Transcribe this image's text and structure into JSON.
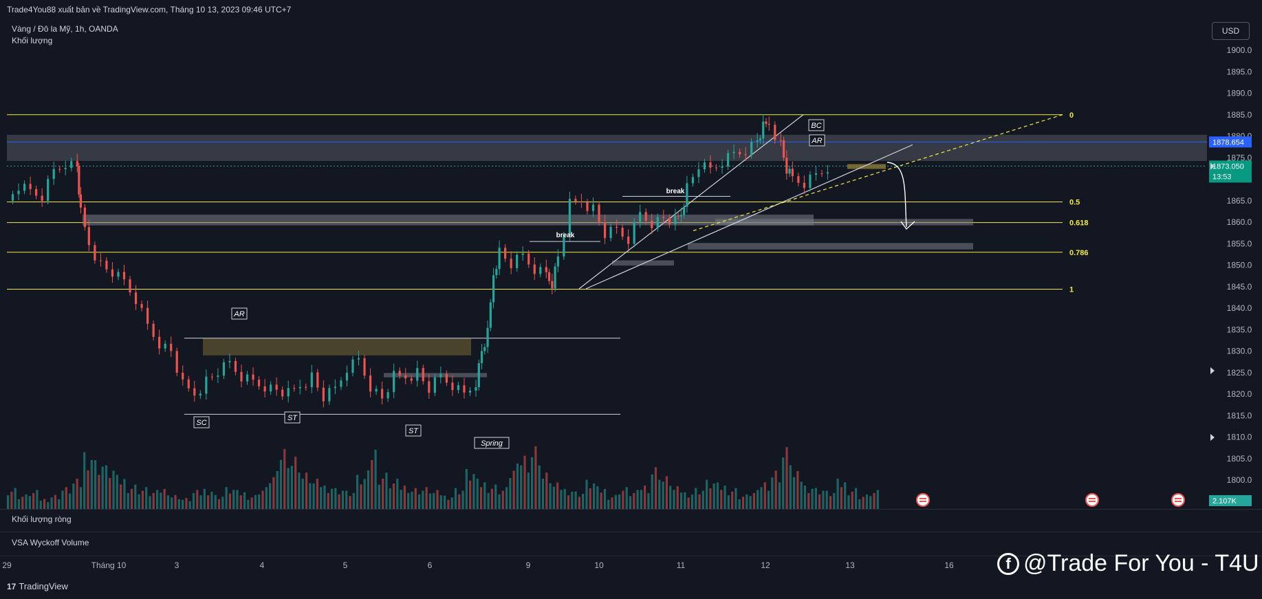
{
  "header": {
    "publish_line": "Trade4You88 xuất bản về TradingView.com, Tháng 10 13, 2023 09:46 UTC+7",
    "symbol_line": "Vàng / Đô la Mỹ, 1h, OANDA",
    "volume_label": "Khối lượng"
  },
  "currency_button": "USD",
  "panes": {
    "net_volume": "Khối lượng ròng",
    "vsa": "VSA Wyckoff Volume"
  },
  "footer": {
    "logo_text": "TradingView",
    "logo_mark": "17"
  },
  "watermark": {
    "text": "@Trade For You - T4U",
    "icon": "facebook-icon"
  },
  "colors": {
    "background": "#131722",
    "up": "#26a69a",
    "down": "#ef5350",
    "fib": "#f5eb3b",
    "zone": "#787b86",
    "accent_blue": "#2962ff"
  },
  "chart_data": {
    "type": "candlestick",
    "ylim": [
      1797,
      1905
    ],
    "y_ticks": [
      1800,
      1805,
      1810,
      1815,
      1820,
      1825,
      1830,
      1835,
      1840,
      1845,
      1850,
      1855,
      1860,
      1865,
      1870,
      1875,
      1880,
      1885,
      1890,
      1895,
      1900
    ],
    "x_ticks": [
      "29",
      "Tháng 10",
      "3",
      "4",
      "5",
      "6",
      "9",
      "10",
      "11",
      "12",
      "13",
      "16"
    ],
    "price_badges": [
      {
        "label": "1878.654",
        "value": 1878.654,
        "color": "#2962ff"
      },
      {
        "label": "1873.050",
        "sub": "13:53",
        "value": 1873.05,
        "color": "#089981"
      }
    ],
    "volume_badge": "2.107K",
    "fib_levels": [
      {
        "label": "0",
        "value": 1885.0
      },
      {
        "label": "0.5",
        "value": 1864.7
      },
      {
        "label": "0.618",
        "value": 1859.9
      },
      {
        "label": "0.786",
        "value": 1853.0
      },
      {
        "label": "1",
        "value": 1844.4
      }
    ],
    "annotations": [
      "AR",
      "SC",
      "ST",
      "ST",
      "Spring",
      "BC",
      "AR",
      "break",
      "break"
    ],
    "price_path": [
      [
        0,
        1865
      ],
      [
        0.01,
        1868
      ],
      [
        0.02,
        1867
      ],
      [
        0.03,
        1866
      ],
      [
        0.04,
        1872
      ],
      [
        0.05,
        1874
      ],
      [
        0.06,
        1873
      ],
      [
        0.063,
        1862
      ],
      [
        0.07,
        1855
      ],
      [
        0.08,
        1850
      ],
      [
        0.09,
        1848
      ],
      [
        0.1,
        1846
      ],
      [
        0.11,
        1842
      ],
      [
        0.12,
        1836
      ],
      [
        0.13,
        1832
      ],
      [
        0.14,
        1830
      ],
      [
        0.15,
        1822
      ],
      [
        0.16,
        1820
      ],
      [
        0.17,
        1823
      ],
      [
        0.18,
        1825
      ],
      [
        0.19,
        1827
      ],
      [
        0.2,
        1824
      ],
      [
        0.21,
        1823
      ],
      [
        0.22,
        1822
      ],
      [
        0.23,
        1821
      ],
      [
        0.24,
        1820
      ],
      [
        0.25,
        1822
      ],
      [
        0.26,
        1824
      ],
      [
        0.27,
        1819
      ],
      [
        0.28,
        1821
      ],
      [
        0.29,
        1826
      ],
      [
        0.3,
        1828
      ],
      [
        0.31,
        1822
      ],
      [
        0.32,
        1819
      ],
      [
        0.33,
        1824
      ],
      [
        0.34,
        1824
      ],
      [
        0.35,
        1825
      ],
      [
        0.36,
        1821
      ],
      [
        0.37,
        1824
      ],
      [
        0.38,
        1822
      ],
      [
        0.39,
        1820
      ],
      [
        0.4,
        1823
      ],
      [
        0.405,
        1830
      ],
      [
        0.41,
        1834
      ],
      [
        0.415,
        1848
      ],
      [
        0.42,
        1853
      ],
      [
        0.43,
        1850
      ],
      [
        0.44,
        1852
      ],
      [
        0.45,
        1849
      ],
      [
        0.46,
        1848
      ],
      [
        0.465,
        1846
      ],
      [
        0.47,
        1852
      ],
      [
        0.48,
        1864
      ],
      [
        0.49,
        1865
      ],
      [
        0.5,
        1863
      ],
      [
        0.51,
        1857
      ],
      [
        0.52,
        1858
      ],
      [
        0.53,
        1856
      ],
      [
        0.54,
        1862
      ],
      [
        0.55,
        1860
      ],
      [
        0.56,
        1861
      ],
      [
        0.57,
        1860
      ],
      [
        0.575,
        1862
      ],
      [
        0.58,
        1868
      ],
      [
        0.59,
        1873
      ],
      [
        0.6,
        1872
      ],
      [
        0.61,
        1874
      ],
      [
        0.62,
        1876
      ],
      [
        0.63,
        1877
      ],
      [
        0.64,
        1879
      ],
      [
        0.645,
        1882
      ],
      [
        0.65,
        1883
      ],
      [
        0.66,
        1878
      ],
      [
        0.665,
        1872
      ],
      [
        0.67,
        1870
      ],
      [
        0.68,
        1869
      ],
      [
        0.69,
        1871
      ],
      [
        0.7,
        1873
      ]
    ],
    "volume_profile": [
      0.3,
      0.2,
      0.25,
      0.15,
      0.2,
      0.3,
      0.4,
      0.85,
      0.7,
      0.6,
      0.45,
      0.35,
      0.3,
      0.25,
      0.3,
      0.2,
      0.15,
      0.25,
      0.3,
      0.2,
      0.3,
      0.25,
      0.2,
      0.3,
      0.5,
      0.9,
      0.75,
      0.5,
      0.4,
      0.35,
      0.3,
      0.25,
      0.45,
      0.85,
      0.5,
      0.4,
      0.35,
      0.3,
      0.3,
      0.25,
      0.2,
      0.3,
      0.55,
      0.4,
      0.35,
      0.3,
      0.6,
      0.8,
      0.9,
      0.5,
      0.35,
      0.3,
      0.25,
      0.4,
      0.3,
      0.2,
      0.3,
      0.25,
      0.35,
      0.6,
      0.45,
      0.3,
      0.25,
      0.3,
      0.4,
      0.35,
      0.3,
      0.2,
      0.25,
      0.4,
      0.55,
      0.85,
      0.5,
      0.35,
      0.3,
      0.25,
      0.4,
      0.3,
      0.2,
      0.25
    ]
  }
}
